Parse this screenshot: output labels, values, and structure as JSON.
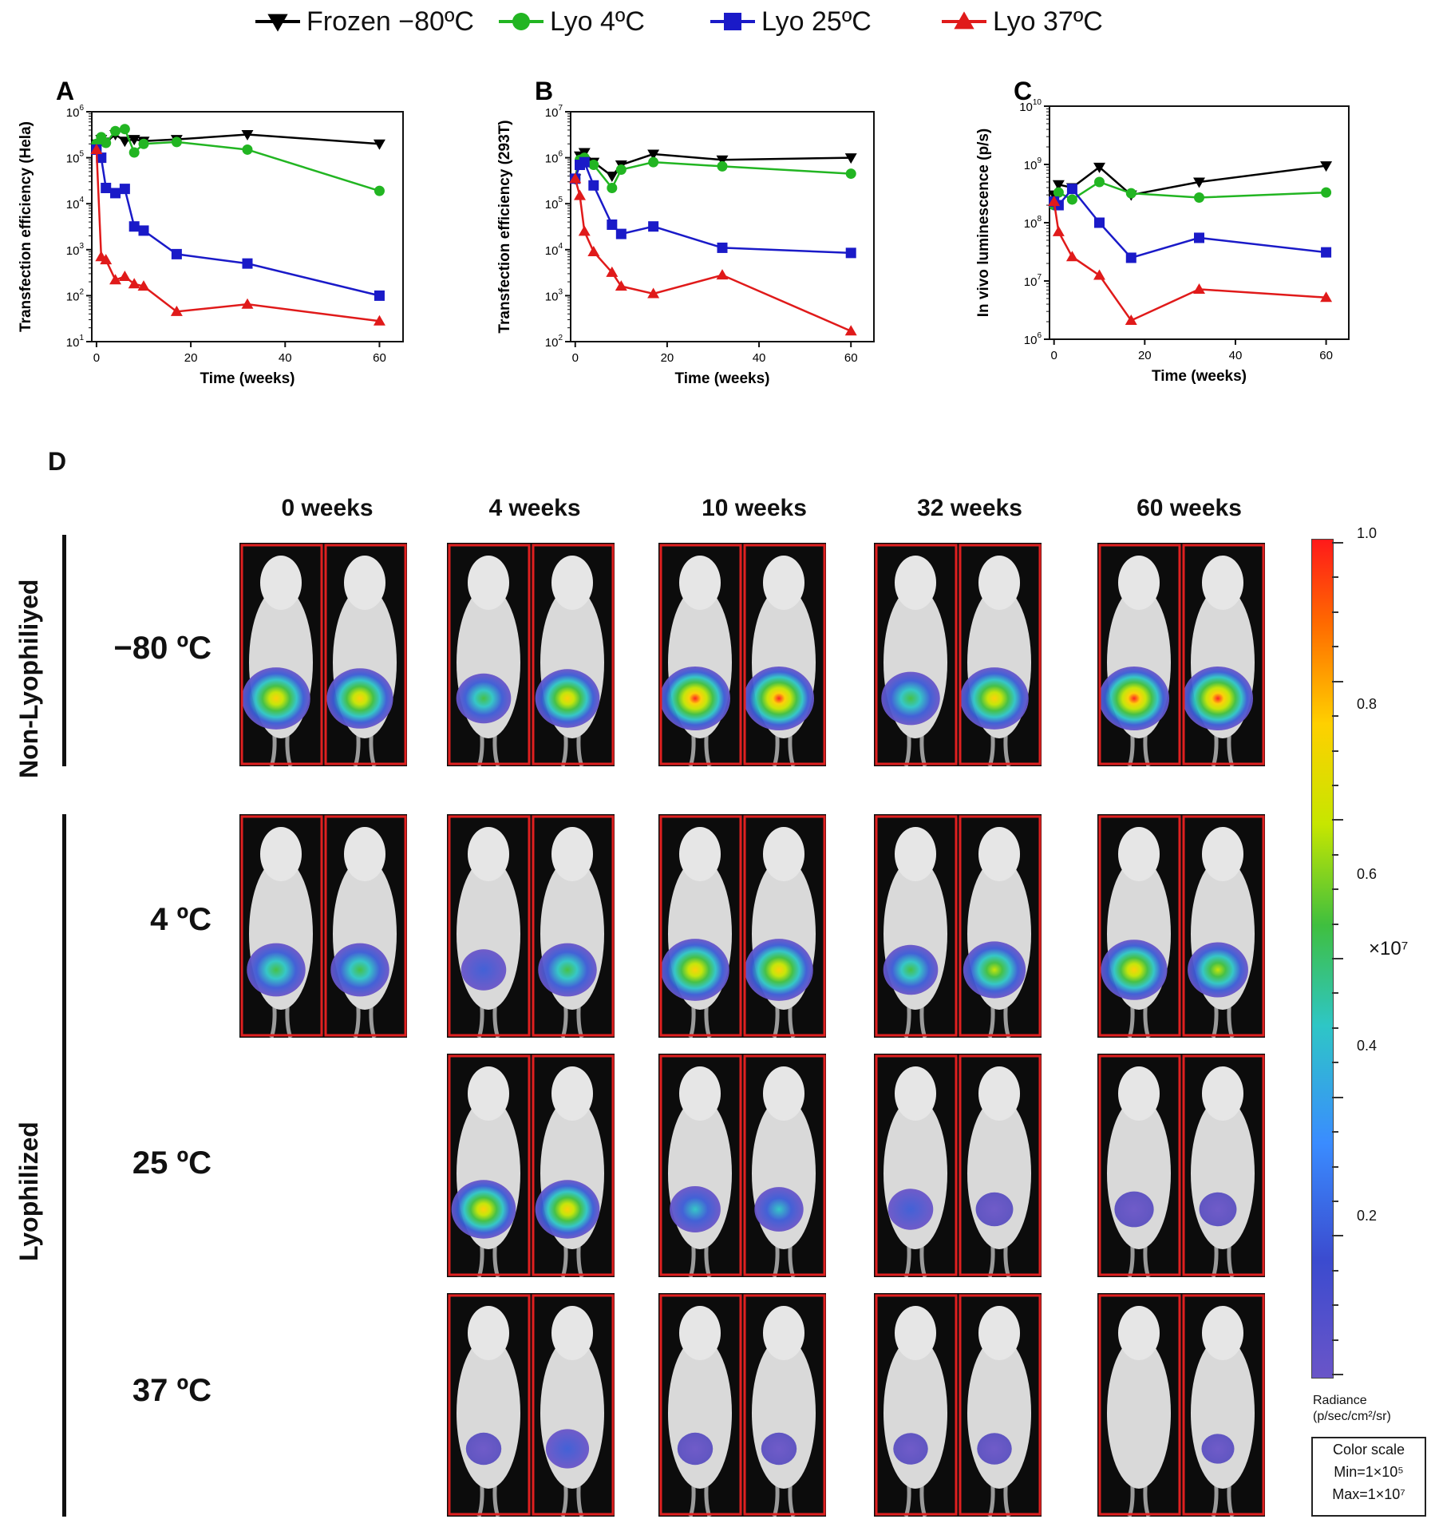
{
  "legend": [
    {
      "label": "Frozen −80ºC",
      "color": "#000000",
      "marker": "triangle-down"
    },
    {
      "label": "Lyo 4ºC",
      "color": "#22b522",
      "marker": "circle"
    },
    {
      "label": "Lyo 25ºC",
      "color": "#1a1ac8",
      "marker": "square"
    },
    {
      "label": "Lyo 37ºC",
      "color": "#e01a1a",
      "marker": "triangle-up"
    }
  ],
  "chart_data": [
    {
      "panel": "A",
      "type": "line",
      "xlabel": "Time (weeks)",
      "ylabel": "Transfection efficiency (Hela)",
      "y_scale": "log",
      "xlim": [
        -1,
        65
      ],
      "ylim": [
        1,
        6
      ],
      "x_ticks": [
        0,
        20,
        40,
        60
      ],
      "y_ticks": [
        1,
        2,
        3,
        4,
        5,
        6
      ],
      "series": [
        {
          "name": "Frozen −80ºC",
          "color": "#000000",
          "marker": "triangle-down",
          "x": [
            0,
            1,
            2,
            4,
            6,
            8,
            10,
            17,
            32,
            60
          ],
          "y": [
            200000,
            250000,
            220000,
            320000,
            230000,
            250000,
            230000,
            250000,
            320000,
            200000
          ]
        },
        {
          "name": "Lyo 4ºC",
          "color": "#22b522",
          "marker": "circle",
          "x": [
            0,
            1,
            2,
            4,
            6,
            8,
            10,
            17,
            32,
            60
          ],
          "y": [
            200000,
            280000,
            210000,
            380000,
            420000,
            130000,
            200000,
            220000,
            150000,
            19000
          ]
        },
        {
          "name": "Lyo 25ºC",
          "color": "#1a1ac8",
          "marker": "square",
          "x": [
            0,
            1,
            2,
            4,
            6,
            8,
            10,
            17,
            32,
            60
          ],
          "y": [
            150000,
            100000,
            22000,
            17000,
            21000,
            3200,
            2600,
            800,
            500,
            100
          ]
        },
        {
          "name": "Lyo 37ºC",
          "color": "#e01a1a",
          "marker": "triangle-up",
          "x": [
            0,
            1,
            2,
            4,
            6,
            8,
            10,
            17,
            32,
            60
          ],
          "y": [
            150000,
            700,
            600,
            220,
            260,
            180,
            160,
            45,
            65,
            28
          ]
        }
      ]
    },
    {
      "panel": "B",
      "type": "line",
      "xlabel": "Time (weeks)",
      "ylabel": "Transfection efficiency (293T)",
      "y_scale": "log",
      "xlim": [
        -1,
        65
      ],
      "ylim": [
        2,
        7
      ],
      "x_ticks": [
        0,
        20,
        40,
        60
      ],
      "y_ticks": [
        2,
        3,
        4,
        5,
        6,
        7
      ],
      "series": [
        {
          "name": "Frozen −80ºC",
          "color": "#000000",
          "marker": "triangle-down",
          "x": [
            0,
            1,
            2,
            4,
            8,
            10,
            17,
            32,
            60
          ],
          "y": [
            350000,
            1100000,
            1300000,
            800000,
            400000,
            700000,
            1200000,
            900000,
            1000000
          ]
        },
        {
          "name": "Lyo 4ºC",
          "color": "#22b522",
          "marker": "circle",
          "x": [
            0,
            1,
            2,
            4,
            8,
            10,
            17,
            32,
            60
          ],
          "y": [
            350000,
            900000,
            1000000,
            700000,
            220000,
            550000,
            800000,
            650000,
            450000
          ]
        },
        {
          "name": "Lyo 25ºC",
          "color": "#1a1ac8",
          "marker": "square",
          "x": [
            0,
            1,
            2,
            4,
            8,
            10,
            17,
            32,
            60
          ],
          "y": [
            350000,
            700000,
            800000,
            250000,
            35000,
            22000,
            32000,
            11000,
            8500
          ]
        },
        {
          "name": "Lyo 37ºC",
          "color": "#e01a1a",
          "marker": "triangle-up",
          "x": [
            0,
            1,
            2,
            4,
            8,
            10,
            17,
            32,
            60
          ],
          "y": [
            350000,
            150000,
            25000,
            9000,
            3200,
            1600,
            1100,
            2800,
            170
          ]
        }
      ]
    },
    {
      "panel": "C",
      "type": "line",
      "xlabel": "Time (weeks)",
      "ylabel": "In vivo luminescence (p/s)",
      "y_scale": "log",
      "xlim": [
        -1,
        65
      ],
      "ylim": [
        6,
        10
      ],
      "x_ticks": [
        0,
        20,
        40,
        60
      ],
      "y_ticks": [
        6,
        7,
        8,
        9,
        10
      ],
      "series": [
        {
          "name": "Frozen −80ºC",
          "color": "#000000",
          "marker": "triangle-down",
          "x": [
            0,
            1,
            4,
            10,
            17,
            32,
            60
          ],
          "y": [
            300000000,
            450000000,
            400000000,
            900000000,
            300000000,
            500000000,
            950000000
          ]
        },
        {
          "name": "Lyo 4ºC",
          "color": "#22b522",
          "marker": "circle",
          "x": [
            0,
            1,
            4,
            10,
            17,
            32,
            60
          ],
          "y": [
            200000000,
            330000000,
            250000000,
            500000000,
            320000000,
            270000000,
            330000000
          ]
        },
        {
          "name": "Lyo 25ºC",
          "color": "#1a1ac8",
          "marker": "square",
          "x": [
            0,
            1,
            4,
            10,
            17,
            32,
            60
          ],
          "y": [
            230000000,
            200000000,
            380000000,
            100000000,
            25000000,
            55000000,
            31000000
          ]
        },
        {
          "name": "Lyo 37ºC",
          "color": "#e01a1a",
          "marker": "triangle-up",
          "x": [
            0,
            1,
            4,
            10,
            17,
            32,
            60
          ],
          "y": [
            230000000,
            70000000,
            26000000,
            12500000,
            2100000,
            7200000,
            5200000
          ]
        }
      ]
    }
  ],
  "panel_d": {
    "letter": "D",
    "weeks": [
      "0 weeks",
      "4 weeks",
      "10 weeks",
      "32 weeks",
      "60 weeks"
    ],
    "groups": [
      "Non-Lyophiliyed",
      "Lyophilized"
    ],
    "rows": [
      "−80 ºC",
      "4 ºC",
      "25 ºC",
      "37 ºC"
    ],
    "colorbar": {
      "ticks": [
        "1.0",
        "0.8",
        "0.6",
        "0.4",
        "0.2"
      ],
      "unit": "×10⁷",
      "radiance_line1": "Radiance",
      "radiance_line2": "(p/sec/cm²/sr)",
      "scale_title": "Color scale",
      "scale_min": "Min=1×10⁵",
      "scale_max": "Max=1×10⁷"
    },
    "images": [
      [
        [
          0.95,
          0.9
        ],
        [
          0.6,
          0.85
        ],
        [
          1.0,
          1.0
        ],
        [
          0.7,
          0.95
        ],
        [
          1.0,
          1.0
        ]
      ],
      [
        [
          0.7,
          0.7
        ],
        [
          0.35,
          0.7
        ],
        [
          0.95,
          0.95
        ],
        [
          0.6,
          0.8
        ],
        [
          0.9,
          0.75
        ]
      ],
      [
        null,
        [
          0.85,
          0.85
        ],
        [
          0.5,
          0.45
        ],
        [
          0.35,
          0.15
        ],
        [
          0.2,
          0.15
        ]
      ],
      [
        null,
        [
          0.1,
          0.3
        ],
        [
          0.1,
          0.1
        ],
        [
          0.08,
          0.08
        ],
        [
          0.0,
          0.03
        ]
      ]
    ]
  }
}
